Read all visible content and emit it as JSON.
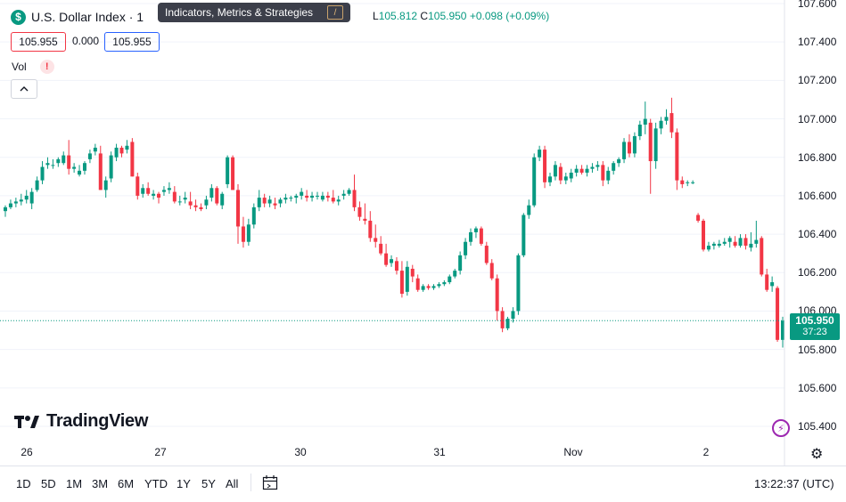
{
  "symbol": {
    "icon": "dollar-icon",
    "icon_glyph": "$",
    "name": "U.S. Dollar Index · 1"
  },
  "tooltip": {
    "text": "Indicators, Metrics & Strategies",
    "badge": "/"
  },
  "ohlc": {
    "low_label": "L",
    "low": "105.812",
    "close_label": "C",
    "close": "105.950",
    "change": "+0.098 (+0.09%)"
  },
  "price_boxes": {
    "sell": "105.955",
    "spread": "0.000",
    "buy": "105.955"
  },
  "volume": {
    "label": "Vol",
    "warning": "!"
  },
  "collapse_icon": "chevron-up-icon",
  "colors": {
    "up": "#089981",
    "down": "#f23645",
    "grid": "#f0f3fa",
    "last_price_line": "#089981"
  },
  "price_axis": {
    "ticks": [
      "107.600",
      "107.400",
      "107.200",
      "107.000",
      "106.800",
      "106.600",
      "106.400",
      "106.200",
      "106.000",
      "105.800",
      "105.600",
      "105.400"
    ]
  },
  "last_price": {
    "price": "105.950",
    "countdown": "37:23"
  },
  "time_axis": {
    "labels": [
      "26",
      "27",
      "30",
      "31",
      "Nov",
      "2"
    ]
  },
  "logo": {
    "text": "TradingView"
  },
  "bottom_bar": {
    "timeframes": [
      "1D",
      "5D",
      "1M",
      "3M",
      "6M",
      "YTD",
      "1Y",
      "5Y",
      "All"
    ],
    "calendar_icon": "calendar-range-icon",
    "clock": "13:22:37 (UTC)"
  },
  "settings_icon": "gear-icon",
  "bolt_icon": "lightning-icon",
  "chart_data": {
    "type": "candlestick",
    "title": "U.S. Dollar Index",
    "ylim": [
      105.3,
      107.7
    ],
    "grid": true,
    "last_price": 105.95,
    "candles": [
      {
        "o": 106.52,
        "h": 106.55,
        "l": 106.49,
        "c": 106.54
      },
      {
        "o": 106.54,
        "h": 106.58,
        "l": 106.53,
        "c": 106.56
      },
      {
        "o": 106.56,
        "h": 106.59,
        "l": 106.54,
        "c": 106.57
      },
      {
        "o": 106.57,
        "h": 106.61,
        "l": 106.55,
        "c": 106.58
      },
      {
        "o": 106.58,
        "h": 106.63,
        "l": 106.56,
        "c": 106.6
      },
      {
        "o": 106.56,
        "h": 106.64,
        "l": 106.53,
        "c": 106.62
      },
      {
        "o": 106.63,
        "h": 106.7,
        "l": 106.62,
        "c": 106.68
      },
      {
        "o": 106.68,
        "h": 106.78,
        "l": 106.66,
        "c": 106.75
      },
      {
        "o": 106.76,
        "h": 106.8,
        "l": 106.74,
        "c": 106.77
      },
      {
        "o": 106.76,
        "h": 106.79,
        "l": 106.74,
        "c": 106.76
      },
      {
        "o": 106.77,
        "h": 106.8,
        "l": 106.75,
        "c": 106.79
      },
      {
        "o": 106.77,
        "h": 106.83,
        "l": 106.76,
        "c": 106.81
      },
      {
        "o": 106.81,
        "h": 106.89,
        "l": 106.71,
        "c": 106.74
      },
      {
        "o": 106.74,
        "h": 106.77,
        "l": 106.72,
        "c": 106.75
      },
      {
        "o": 106.71,
        "h": 106.76,
        "l": 106.7,
        "c": 106.73
      },
      {
        "o": 106.73,
        "h": 106.78,
        "l": 106.71,
        "c": 106.77
      },
      {
        "o": 106.79,
        "h": 106.84,
        "l": 106.77,
        "c": 106.82
      },
      {
        "o": 106.83,
        "h": 106.87,
        "l": 106.81,
        "c": 106.85
      },
      {
        "o": 106.82,
        "h": 106.86,
        "l": 106.63,
        "c": 106.63
      },
      {
        "o": 106.63,
        "h": 106.7,
        "l": 106.59,
        "c": 106.68
      },
      {
        "o": 106.69,
        "h": 106.83,
        "l": 106.67,
        "c": 106.81
      },
      {
        "o": 106.8,
        "h": 106.87,
        "l": 106.78,
        "c": 106.85
      },
      {
        "o": 106.85,
        "h": 106.86,
        "l": 106.8,
        "c": 106.82
      },
      {
        "o": 106.84,
        "h": 106.89,
        "l": 106.82,
        "c": 106.86
      },
      {
        "o": 106.88,
        "h": 106.9,
        "l": 106.7,
        "c": 106.7
      },
      {
        "o": 106.7,
        "h": 106.72,
        "l": 106.58,
        "c": 106.6
      },
      {
        "o": 106.61,
        "h": 106.66,
        "l": 106.59,
        "c": 106.64
      },
      {
        "o": 106.64,
        "h": 106.67,
        "l": 106.6,
        "c": 106.61
      },
      {
        "o": 106.6,
        "h": 106.63,
        "l": 106.58,
        "c": 106.61
      },
      {
        "o": 106.61,
        "h": 106.62,
        "l": 106.56,
        "c": 106.59
      },
      {
        "o": 106.62,
        "h": 106.65,
        "l": 106.6,
        "c": 106.63
      },
      {
        "o": 106.63,
        "h": 106.67,
        "l": 106.61,
        "c": 106.64
      },
      {
        "o": 106.62,
        "h": 106.65,
        "l": 106.56,
        "c": 106.57
      },
      {
        "o": 106.57,
        "h": 106.6,
        "l": 106.55,
        "c": 106.57
      },
      {
        "o": 106.58,
        "h": 106.62,
        "l": 106.56,
        "c": 106.59
      },
      {
        "o": 106.57,
        "h": 106.62,
        "l": 106.53,
        "c": 106.55
      },
      {
        "o": 106.55,
        "h": 106.58,
        "l": 106.52,
        "c": 106.54
      },
      {
        "o": 106.54,
        "h": 106.56,
        "l": 106.52,
        "c": 106.53
      },
      {
        "o": 106.55,
        "h": 106.6,
        "l": 106.53,
        "c": 106.58
      },
      {
        "o": 106.59,
        "h": 106.66,
        "l": 106.57,
        "c": 106.64
      },
      {
        "o": 106.64,
        "h": 106.65,
        "l": 106.55,
        "c": 106.56
      },
      {
        "o": 106.55,
        "h": 106.62,
        "l": 106.53,
        "c": 106.61
      },
      {
        "o": 106.66,
        "h": 106.81,
        "l": 106.64,
        "c": 106.8
      },
      {
        "o": 106.8,
        "h": 106.81,
        "l": 106.63,
        "c": 106.63
      },
      {
        "o": 106.63,
        "h": 106.66,
        "l": 106.35,
        "c": 106.44
      },
      {
        "o": 106.44,
        "h": 106.49,
        "l": 106.33,
        "c": 106.36
      },
      {
        "o": 106.36,
        "h": 106.48,
        "l": 106.34,
        "c": 106.45
      },
      {
        "o": 106.45,
        "h": 106.56,
        "l": 106.43,
        "c": 106.54
      },
      {
        "o": 106.54,
        "h": 106.63,
        "l": 106.52,
        "c": 106.59
      },
      {
        "o": 106.59,
        "h": 106.61,
        "l": 106.54,
        "c": 106.56
      },
      {
        "o": 106.56,
        "h": 106.6,
        "l": 106.54,
        "c": 106.58
      },
      {
        "o": 106.56,
        "h": 106.59,
        "l": 106.53,
        "c": 106.55
      },
      {
        "o": 106.56,
        "h": 106.59,
        "l": 106.54,
        "c": 106.58
      },
      {
        "o": 106.58,
        "h": 106.61,
        "l": 106.56,
        "c": 106.59
      },
      {
        "o": 106.59,
        "h": 106.6,
        "l": 106.57,
        "c": 106.59
      },
      {
        "o": 106.59,
        "h": 106.61,
        "l": 106.56,
        "c": 106.6
      },
      {
        "o": 106.6,
        "h": 106.64,
        "l": 106.58,
        "c": 106.62
      },
      {
        "o": 106.6,
        "h": 106.63,
        "l": 106.57,
        "c": 106.59
      },
      {
        "o": 106.59,
        "h": 106.62,
        "l": 106.57,
        "c": 106.6
      },
      {
        "o": 106.6,
        "h": 106.62,
        "l": 106.58,
        "c": 106.6
      },
      {
        "o": 106.58,
        "h": 106.62,
        "l": 106.57,
        "c": 106.6
      },
      {
        "o": 106.6,
        "h": 106.62,
        "l": 106.57,
        "c": 106.59
      },
      {
        "o": 106.59,
        "h": 106.63,
        "l": 106.56,
        "c": 106.57
      },
      {
        "o": 106.57,
        "h": 106.6,
        "l": 106.55,
        "c": 106.58
      },
      {
        "o": 106.6,
        "h": 106.63,
        "l": 106.58,
        "c": 106.61
      },
      {
        "o": 106.61,
        "h": 106.64,
        "l": 106.6,
        "c": 106.63
      },
      {
        "o": 106.63,
        "h": 106.71,
        "l": 106.52,
        "c": 106.54
      },
      {
        "o": 106.54,
        "h": 106.57,
        "l": 106.47,
        "c": 106.49
      },
      {
        "o": 106.48,
        "h": 106.56,
        "l": 106.45,
        "c": 106.47
      },
      {
        "o": 106.47,
        "h": 106.52,
        "l": 106.36,
        "c": 106.38
      },
      {
        "o": 106.38,
        "h": 106.45,
        "l": 106.33,
        "c": 106.36
      },
      {
        "o": 106.35,
        "h": 106.39,
        "l": 106.29,
        "c": 106.3
      },
      {
        "o": 106.3,
        "h": 106.35,
        "l": 106.23,
        "c": 106.24
      },
      {
        "o": 106.25,
        "h": 106.29,
        "l": 106.23,
        "c": 106.27
      },
      {
        "o": 106.26,
        "h": 106.28,
        "l": 106.19,
        "c": 106.21
      },
      {
        "o": 106.21,
        "h": 106.26,
        "l": 106.07,
        "c": 106.09
      },
      {
        "o": 106.1,
        "h": 106.26,
        "l": 106.08,
        "c": 106.23
      },
      {
        "o": 106.22,
        "h": 106.24,
        "l": 106.15,
        "c": 106.18
      },
      {
        "o": 106.17,
        "h": 106.19,
        "l": 106.1,
        "c": 106.11
      },
      {
        "o": 106.11,
        "h": 106.14,
        "l": 106.1,
        "c": 106.13
      },
      {
        "o": 106.13,
        "h": 106.14,
        "l": 106.11,
        "c": 106.12
      },
      {
        "o": 106.12,
        "h": 106.14,
        "l": 106.11,
        "c": 106.13
      },
      {
        "o": 106.13,
        "h": 106.15,
        "l": 106.12,
        "c": 106.14
      },
      {
        "o": 106.14,
        "h": 106.16,
        "l": 106.13,
        "c": 106.15
      },
      {
        "o": 106.15,
        "h": 106.19,
        "l": 106.14,
        "c": 106.18
      },
      {
        "o": 106.18,
        "h": 106.22,
        "l": 106.17,
        "c": 106.21
      },
      {
        "o": 106.21,
        "h": 106.31,
        "l": 106.19,
        "c": 106.29
      },
      {
        "o": 106.29,
        "h": 106.38,
        "l": 106.27,
        "c": 106.36
      },
      {
        "o": 106.36,
        "h": 106.43,
        "l": 106.34,
        "c": 106.41
      },
      {
        "o": 106.41,
        "h": 106.44,
        "l": 106.38,
        "c": 106.43
      },
      {
        "o": 106.43,
        "h": 106.44,
        "l": 106.34,
        "c": 106.35
      },
      {
        "o": 106.34,
        "h": 106.36,
        "l": 106.24,
        "c": 106.25
      },
      {
        "o": 106.25,
        "h": 106.27,
        "l": 106.16,
        "c": 106.17
      },
      {
        "o": 106.17,
        "h": 106.19,
        "l": 105.95,
        "c": 106.0
      },
      {
        "o": 106.0,
        "h": 106.02,
        "l": 105.89,
        "c": 105.91
      },
      {
        "o": 105.91,
        "h": 105.97,
        "l": 105.9,
        "c": 105.96
      },
      {
        "o": 105.96,
        "h": 106.02,
        "l": 105.94,
        "c": 106.0
      },
      {
        "o": 106.0,
        "h": 106.3,
        "l": 105.98,
        "c": 106.29
      },
      {
        "o": 106.29,
        "h": 106.51,
        "l": 106.28,
        "c": 106.5
      },
      {
        "o": 106.5,
        "h": 106.58,
        "l": 106.48,
        "c": 106.55
      },
      {
        "o": 106.55,
        "h": 106.82,
        "l": 106.54,
        "c": 106.8
      },
      {
        "o": 106.8,
        "h": 106.86,
        "l": 106.78,
        "c": 106.84
      },
      {
        "o": 106.84,
        "h": 106.86,
        "l": 106.64,
        "c": 106.67
      },
      {
        "o": 106.67,
        "h": 106.72,
        "l": 106.65,
        "c": 106.7
      },
      {
        "o": 106.7,
        "h": 106.78,
        "l": 106.68,
        "c": 106.76
      },
      {
        "o": 106.75,
        "h": 106.77,
        "l": 106.66,
        "c": 106.68
      },
      {
        "o": 106.68,
        "h": 106.72,
        "l": 106.66,
        "c": 106.7
      },
      {
        "o": 106.69,
        "h": 106.74,
        "l": 106.67,
        "c": 106.72
      },
      {
        "o": 106.72,
        "h": 106.76,
        "l": 106.7,
        "c": 106.74
      },
      {
        "o": 106.74,
        "h": 106.76,
        "l": 106.71,
        "c": 106.72
      },
      {
        "o": 106.72,
        "h": 106.76,
        "l": 106.7,
        "c": 106.74
      },
      {
        "o": 106.74,
        "h": 106.77,
        "l": 106.72,
        "c": 106.75
      },
      {
        "o": 106.75,
        "h": 106.78,
        "l": 106.73,
        "c": 106.76
      },
      {
        "o": 106.76,
        "h": 106.78,
        "l": 106.65,
        "c": 106.68
      },
      {
        "o": 106.68,
        "h": 106.75,
        "l": 106.66,
        "c": 106.73
      },
      {
        "o": 106.73,
        "h": 106.78,
        "l": 106.71,
        "c": 106.77
      },
      {
        "o": 106.77,
        "h": 106.8,
        "l": 106.75,
        "c": 106.79
      },
      {
        "o": 106.79,
        "h": 106.9,
        "l": 106.77,
        "c": 106.88
      },
      {
        "o": 106.88,
        "h": 106.92,
        "l": 106.8,
        "c": 106.82
      },
      {
        "o": 106.82,
        "h": 106.93,
        "l": 106.8,
        "c": 106.91
      },
      {
        "o": 106.91,
        "h": 106.99,
        "l": 106.89,
        "c": 106.97
      },
      {
        "o": 106.97,
        "h": 107.09,
        "l": 106.92,
        "c": 107.0
      },
      {
        "o": 106.98,
        "h": 107.0,
        "l": 106.61,
        "c": 106.78
      },
      {
        "o": 106.78,
        "h": 106.98,
        "l": 106.74,
        "c": 106.95
      },
      {
        "o": 106.95,
        "h": 107.01,
        "l": 106.92,
        "c": 106.99
      },
      {
        "o": 106.99,
        "h": 107.05,
        "l": 106.97,
        "c": 107.01
      },
      {
        "o": 107.03,
        "h": 107.11,
        "l": 106.9,
        "c": 106.93
      },
      {
        "o": 106.93,
        "h": 106.95,
        "l": 106.63,
        "c": 106.68
      },
      {
        "o": 106.68,
        "h": 106.7,
        "l": 106.64,
        "c": 106.66
      },
      {
        "o": 106.67,
        "h": 106.68,
        "l": 106.65,
        "c": 106.67
      },
      {
        "o": 106.67,
        "h": 106.68,
        "l": 106.66,
        "c": 106.67
      },
      {
        "o": 106.5,
        "h": 106.51,
        "l": 106.46,
        "c": 106.47
      },
      {
        "o": 106.47,
        "h": 106.48,
        "l": 106.31,
        "c": 106.32
      },
      {
        "o": 106.32,
        "h": 106.36,
        "l": 106.31,
        "c": 106.34
      },
      {
        "o": 106.34,
        "h": 106.36,
        "l": 106.32,
        "c": 106.35
      },
      {
        "o": 106.34,
        "h": 106.37,
        "l": 106.33,
        "c": 106.35
      },
      {
        "o": 106.35,
        "h": 106.38,
        "l": 106.34,
        "c": 106.36
      },
      {
        "o": 106.36,
        "h": 106.39,
        "l": 106.33,
        "c": 106.38
      },
      {
        "o": 106.36,
        "h": 106.39,
        "l": 106.33,
        "c": 106.34
      },
      {
        "o": 106.34,
        "h": 106.4,
        "l": 106.33,
        "c": 106.38
      },
      {
        "o": 106.38,
        "h": 106.4,
        "l": 106.32,
        "c": 106.34
      },
      {
        "o": 106.33,
        "h": 106.41,
        "l": 106.31,
        "c": 106.35
      },
      {
        "o": 106.35,
        "h": 106.47,
        "l": 106.33,
        "c": 106.37
      },
      {
        "o": 106.38,
        "h": 106.39,
        "l": 106.18,
        "c": 106.19
      },
      {
        "o": 106.19,
        "h": 106.22,
        "l": 106.1,
        "c": 106.11
      },
      {
        "o": 106.13,
        "h": 106.18,
        "l": 106.1,
        "c": 106.15
      },
      {
        "o": 106.12,
        "h": 106.13,
        "l": 105.84,
        "c": 105.85
      },
      {
        "o": 105.85,
        "h": 105.97,
        "l": 105.81,
        "c": 105.95
      }
    ]
  }
}
